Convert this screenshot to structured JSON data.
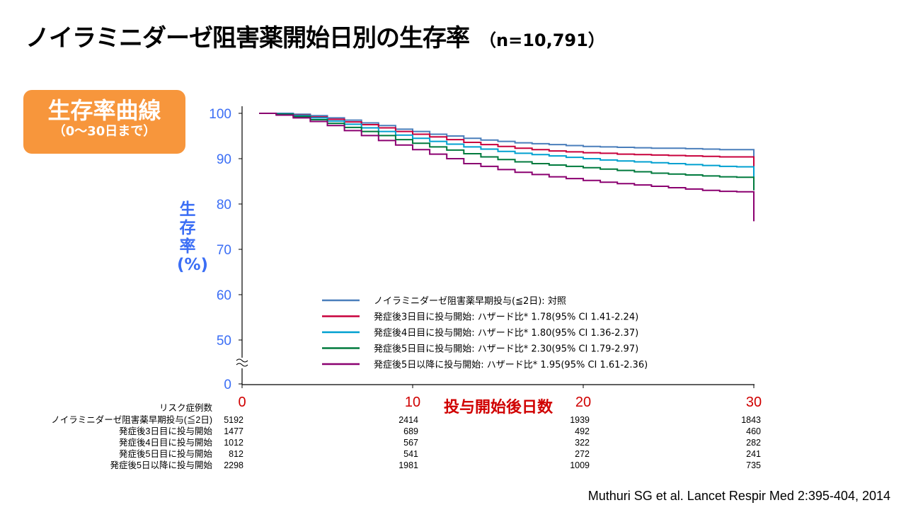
{
  "title": "ノイラミニダーゼ阻害薬開始日別の生存率",
  "title_n": "（n=10,791）",
  "badge": {
    "line1": "生存率曲線",
    "line2": "（0～30日まで）"
  },
  "reference": "Muthuri SG et al. Lancet Respir Med 2:395-404, 2014",
  "chart_data": {
    "type": "line",
    "subtype": "kaplan-meier step",
    "xlabel": "投与開始後日数",
    "ylabel": "生存率(%)",
    "xlim": [
      0,
      30
    ],
    "ylim": [
      0,
      100
    ],
    "y_axis_break": [
      0,
      50
    ],
    "x_ticks": [
      "0",
      "10",
      "20",
      "30"
    ],
    "y_ticks": [
      "100",
      "90",
      "80",
      "70",
      "60",
      "50",
      "0"
    ],
    "x_days": [
      1,
      2,
      3,
      4,
      5,
      6,
      7,
      8,
      9,
      10,
      11,
      12,
      13,
      14,
      15,
      16,
      17,
      18,
      19,
      20,
      21,
      22,
      23,
      24,
      25,
      26,
      27,
      28,
      29
    ],
    "legend_position": "bottom-right",
    "series": [
      {
        "name": "ノイラミニダーゼ阻害薬早期投与(≦2日): 対照",
        "color": "#4a7ebb",
        "values": [
          100,
          100,
          99.8,
          99.5,
          99.0,
          98.5,
          97.9,
          97.3,
          96.5,
          96.0,
          95.4,
          95.0,
          94.5,
          94.1,
          93.8,
          93.5,
          93.3,
          93.1,
          92.9,
          92.7,
          92.6,
          92.5,
          92.4,
          92.3,
          92.3,
          92.2,
          92.1,
          92.0,
          92.0
        ],
        "final": 90.4
      },
      {
        "name": "発症後3日目に投与開始: ハザード比* 1.78(95% CI 1.41-2.24)",
        "color": "#c8003c",
        "values": [
          100,
          99.9,
          99.6,
          99.2,
          98.7,
          98.1,
          97.5,
          96.8,
          96.0,
          95.4,
          94.8,
          94.2,
          93.6,
          93.1,
          92.7,
          92.3,
          92.0,
          91.7,
          91.5,
          91.3,
          91.2,
          91.0,
          90.9,
          90.8,
          90.7,
          90.6,
          90.5,
          90.4,
          90.4
        ],
        "final": 88.2
      },
      {
        "name": "発症後4日目に投与開始: ハザード比* 1.80(95% CI 1.36-2.37)",
        "color": "#00a0d0",
        "values": [
          100,
          99.9,
          99.5,
          99.0,
          98.3,
          97.6,
          96.8,
          96.0,
          95.2,
          94.5,
          93.8,
          93.2,
          92.6,
          92.1,
          91.6,
          91.2,
          90.9,
          90.6,
          90.3,
          90.0,
          89.7,
          89.5,
          89.3,
          89.1,
          88.9,
          88.7,
          88.5,
          88.3,
          88.2
        ],
        "final": 85.9
      },
      {
        "name": "発症後5日目に投与開始: ハザード比* 2.30(95% CI 1.79-2.97)",
        "color": "#007a3d",
        "values": [
          100,
          99.8,
          99.3,
          98.6,
          97.8,
          96.9,
          96.0,
          95.1,
          94.2,
          93.4,
          92.6,
          91.9,
          91.1,
          90.4,
          89.8,
          89.3,
          88.9,
          88.6,
          88.3,
          88.0,
          87.7,
          87.4,
          87.1,
          86.8,
          86.6,
          86.4,
          86.2,
          86.0,
          85.9
        ],
        "final": 83.0
      },
      {
        "name": "発症後5日以降に投与開始: ハザード比* 1.95(95% CI 1.61-2.36)",
        "color": "#8b0070",
        "values": [
          100,
          99.6,
          99.0,
          98.2,
          97.3,
          96.2,
          95.1,
          94.0,
          93.0,
          92.0,
          91.0,
          90.0,
          88.9,
          88.3,
          87.6,
          87.0,
          86.5,
          86.0,
          85.6,
          85.2,
          84.8,
          84.5,
          84.2,
          83.9,
          83.6,
          83.3,
          83.0,
          82.8,
          82.7
        ],
        "final": 76.2
      }
    ],
    "risk_table": {
      "header": "リスク症例数",
      "timepoints": [
        0,
        10,
        20,
        30
      ],
      "rows": [
        {
          "label": "ノイラミニダーゼ阻害薬早期投与(≦2日)",
          "values": [
            "5192",
            "2414",
            "1939",
            "1843"
          ]
        },
        {
          "label": "発症後3日目に投与開始",
          "values": [
            "1477",
            "689",
            "492",
            "460"
          ]
        },
        {
          "label": "発症後4日目に投与開始",
          "values": [
            "1012",
            "567",
            "322",
            "282"
          ]
        },
        {
          "label": "発症後5日目に投与開始",
          "values": [
            "812",
            "541",
            "272",
            "241"
          ]
        },
        {
          "label": "発症後5日以降に投与開始",
          "values": [
            "2298",
            "1981",
            "1009",
            "735"
          ]
        }
      ]
    }
  }
}
